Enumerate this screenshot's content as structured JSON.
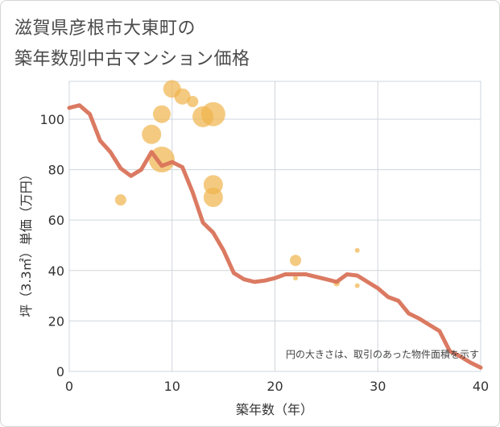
{
  "chart_data": {
    "type": "scatter",
    "title_line1": "滋賀県彦根市大東町の",
    "title_line2": "築年数別中古マンション価格",
    "xlabel": "築年数（年）",
    "ylabel": "坪（3.3㎡）単価（万円）",
    "note": "円の大きさは、取引のあった物件面積を示す",
    "xlim": [
      0,
      40
    ],
    "ylim": [
      0,
      115
    ],
    "x_ticks": [
      0,
      10,
      20,
      30,
      40
    ],
    "y_ticks": [
      0,
      20,
      40,
      60,
      80,
      100
    ],
    "grid": true,
    "line_color": "#d9735a",
    "bubble_color": "#f0b44c",
    "trend_line": {
      "name": "average",
      "x": [
        0,
        1,
        2,
        3,
        4,
        5,
        6,
        7,
        8,
        9,
        10,
        11,
        12,
        13,
        14,
        15,
        16,
        17,
        18,
        19,
        20,
        21,
        22,
        23,
        24,
        25,
        26,
        27,
        28,
        29,
        30,
        31,
        32,
        33,
        34,
        35,
        36,
        37,
        38,
        39,
        40
      ],
      "y": [
        104.5,
        105.5,
        102,
        91.5,
        87,
        80.5,
        77.5,
        80,
        87,
        81.5,
        83,
        81,
        71,
        59,
        55,
        48,
        39,
        36.5,
        35.5,
        36,
        37,
        38.5,
        38.5,
        38.5,
        37.5,
        36.5,
        35.5,
        38.5,
        38,
        35.5,
        33,
        29.5,
        28,
        23,
        21,
        18.5,
        16,
        8,
        6,
        3.5,
        1.5
      ]
    },
    "bubbles": [
      {
        "x": 5,
        "y": 68,
        "size": 7
      },
      {
        "x": 8,
        "y": 94,
        "size": 12
      },
      {
        "x": 9,
        "y": 102,
        "size": 11
      },
      {
        "x": 9,
        "y": 84,
        "size": 16
      },
      {
        "x": 10,
        "y": 112,
        "size": 11
      },
      {
        "x": 11,
        "y": 109,
        "size": 10
      },
      {
        "x": 12,
        "y": 107,
        "size": 7
      },
      {
        "x": 13,
        "y": 101,
        "size": 13
      },
      {
        "x": 14,
        "y": 102,
        "size": 15
      },
      {
        "x": 14,
        "y": 74,
        "size": 12
      },
      {
        "x": 14,
        "y": 69,
        "size": 12
      },
      {
        "x": 22,
        "y": 44,
        "size": 7
      },
      {
        "x": 22,
        "y": 37,
        "size": 3
      },
      {
        "x": 26,
        "y": 35,
        "size": 4
      },
      {
        "x": 28,
        "y": 48,
        "size": 3
      },
      {
        "x": 28,
        "y": 34,
        "size": 3
      }
    ]
  }
}
